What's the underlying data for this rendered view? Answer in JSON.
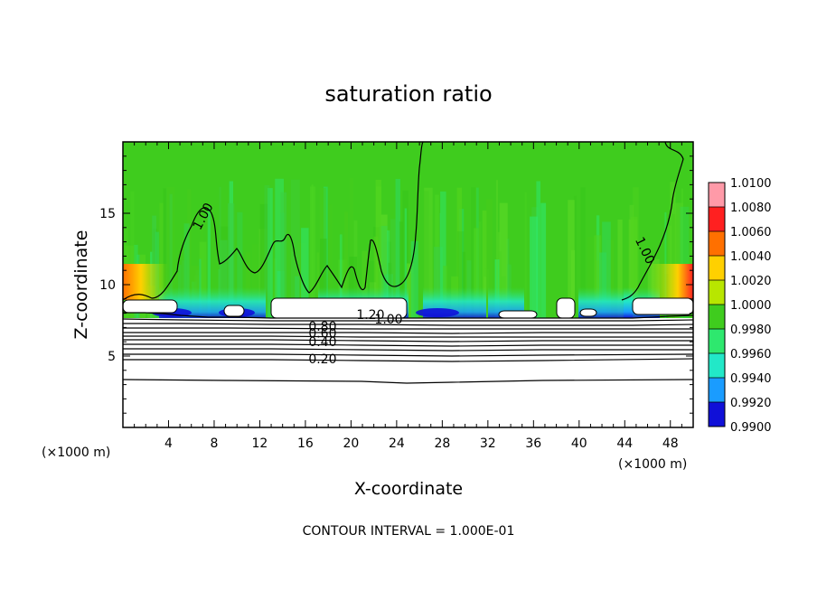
{
  "chart_data": {
    "type": "heatmap",
    "title": "saturation ratio",
    "xlabel": "X-coordinate",
    "ylabel": "Z-coordinate",
    "x_unit": "(×1000 m)",
    "x_unit_right": "(×1000 m)",
    "xlim": [
      0,
      50
    ],
    "ylim": [
      0,
      20
    ],
    "x_ticks": [
      4,
      8,
      12,
      16,
      20,
      24,
      28,
      32,
      36,
      40,
      44,
      48
    ],
    "y_ticks": [
      5,
      10,
      15
    ],
    "colorbar": {
      "levels": [
        "1.0100",
        "1.0080",
        "1.0060",
        "1.0040",
        "1.0020",
        "1.0000",
        "0.9980",
        "0.9960",
        "0.9940",
        "0.9920",
        "0.9900"
      ],
      "colors": [
        "#ff9aa8",
        "#ff2020",
        "#ff7000",
        "#ffd000",
        "#b8e600",
        "#3fcc1e",
        "#2ee86e",
        "#22e8c8",
        "#1a9cff",
        "#1010d8",
        "#60109c"
      ]
    },
    "contour_labels": [
      {
        "text": "1.00",
        "x": 7.0,
        "y": 14.8
      },
      {
        "text": "1.00",
        "x": 45.8,
        "y": 12.4
      },
      {
        "text": "1.20",
        "x": 21.7,
        "y": 7.9
      },
      {
        "text": "1.00",
        "x": 23.3,
        "y": 7.6
      },
      {
        "text": "0.80",
        "x": 17.5,
        "y": 7.1
      },
      {
        "text": "0.60",
        "x": 17.5,
        "y": 6.6
      },
      {
        "text": "0.40",
        "x": 17.5,
        "y": 6.0
      },
      {
        "text": "0.20",
        "x": 17.5,
        "y": 4.8
      }
    ],
    "contour_interval_note": "CONTOUR INTERVAL = 1.000E-01"
  }
}
